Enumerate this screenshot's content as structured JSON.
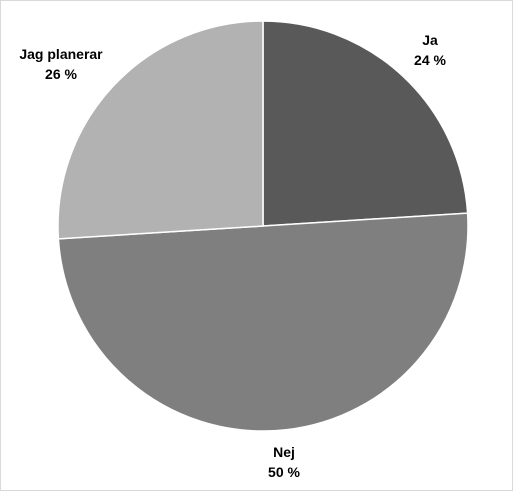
{
  "chart_data": {
    "type": "pie",
    "title": "",
    "slices": [
      {
        "label": "Ja",
        "value": 24,
        "value_label": "24 %",
        "color": "#595959"
      },
      {
        "label": "Nej",
        "value": 50,
        "value_label": "50 %",
        "color": "#7f7f7f"
      },
      {
        "label": "Jag planerar",
        "value": 26,
        "value_label": "26 %",
        "color": "#b2b2b2"
      }
    ],
    "start_angle": "12 o'clock",
    "direction": "clockwise",
    "legend": "none",
    "slice_separator_color": "#ffffff"
  }
}
